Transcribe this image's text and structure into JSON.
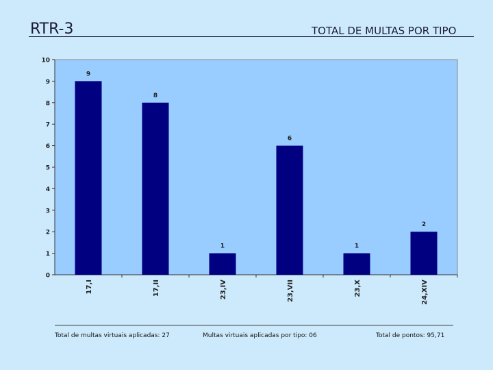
{
  "slide": {
    "code": "RTR-3",
    "title": "TOTAL DE MULTAS POR TIPO"
  },
  "footer": {
    "total_applied": "Total de multas virtuais aplicadas: 27",
    "per_type": "Multas virtuais aplicadas por tipo: 06",
    "total_points": "Total de pontos: 95,71"
  },
  "colors": {
    "background": "#cdeafc",
    "plot_area": "#99ccff",
    "bar": "#000080"
  },
  "chart_data": {
    "type": "bar",
    "title": "TOTAL DE MULTAS POR TIPO",
    "xlabel": "",
    "ylabel": "",
    "categories": [
      "17,I",
      "17,II",
      "23,IV",
      "23,VII",
      "23,X",
      "24,XIV"
    ],
    "values": [
      9,
      8,
      1,
      6,
      1,
      2
    ],
    "ylim": [
      0,
      10
    ],
    "yticks": [
      0,
      1,
      2,
      3,
      4,
      5,
      6,
      7,
      8,
      9,
      10
    ],
    "grid": false,
    "legend": false,
    "data_labels": true
  }
}
